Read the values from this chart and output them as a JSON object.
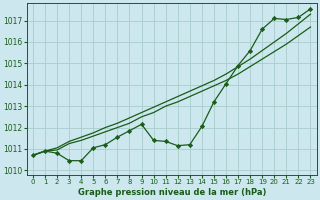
{
  "title": "Graphe pression niveau de la mer (hPa)",
  "bg_color": "#cce8ee",
  "grid_color": "#aacccc",
  "line_color": "#1a5c1a",
  "xlim": [
    -0.5,
    23.5
  ],
  "ylim": [
    1009.8,
    1017.8
  ],
  "yticks": [
    1010,
    1011,
    1012,
    1013,
    1014,
    1015,
    1016,
    1017
  ],
  "xticks": [
    0,
    1,
    2,
    3,
    4,
    5,
    6,
    7,
    8,
    9,
    10,
    11,
    12,
    13,
    14,
    15,
    16,
    17,
    18,
    19,
    20,
    21,
    22,
    23
  ],
  "line1_x": [
    0,
    1,
    2,
    3,
    4,
    5,
    6,
    7,
    8,
    9,
    10,
    11,
    12,
    13,
    14,
    15,
    16,
    17,
    18,
    19,
    20,
    21,
    22,
    23
  ],
  "line1_y": [
    1010.7,
    1010.9,
    1010.95,
    1011.25,
    1011.4,
    1011.6,
    1011.8,
    1012.0,
    1012.2,
    1012.5,
    1012.7,
    1013.0,
    1013.2,
    1013.45,
    1013.7,
    1013.95,
    1014.2,
    1014.5,
    1014.85,
    1015.2,
    1015.55,
    1015.9,
    1016.3,
    1016.7
  ],
  "line2_x": [
    0,
    1,
    2,
    3,
    4,
    5,
    6,
    7,
    8,
    9,
    10,
    11,
    12,
    13,
    14,
    15,
    16,
    17,
    18,
    19,
    20,
    21,
    22,
    23
  ],
  "line2_y": [
    1010.7,
    1010.9,
    1011.05,
    1011.35,
    1011.55,
    1011.75,
    1012.0,
    1012.2,
    1012.45,
    1012.7,
    1012.95,
    1013.2,
    1013.45,
    1013.7,
    1013.95,
    1014.2,
    1014.5,
    1014.85,
    1015.2,
    1015.6,
    1016.0,
    1016.4,
    1016.85,
    1017.3
  ],
  "line3_x": [
    0,
    1,
    2,
    3,
    4,
    5,
    6,
    7,
    8,
    9,
    10,
    11,
    12,
    13,
    14,
    15,
    16,
    17,
    18,
    19,
    20,
    21,
    22,
    23
  ],
  "line3_y": [
    1010.7,
    1010.9,
    1010.8,
    1010.45,
    1010.45,
    1011.05,
    1011.2,
    1011.55,
    1011.85,
    1012.15,
    1011.4,
    1011.35,
    1011.15,
    1011.2,
    1012.05,
    1013.2,
    1014.05,
    1014.9,
    1015.6,
    1016.6,
    1017.1,
    1017.05,
    1017.15,
    1017.55
  ]
}
